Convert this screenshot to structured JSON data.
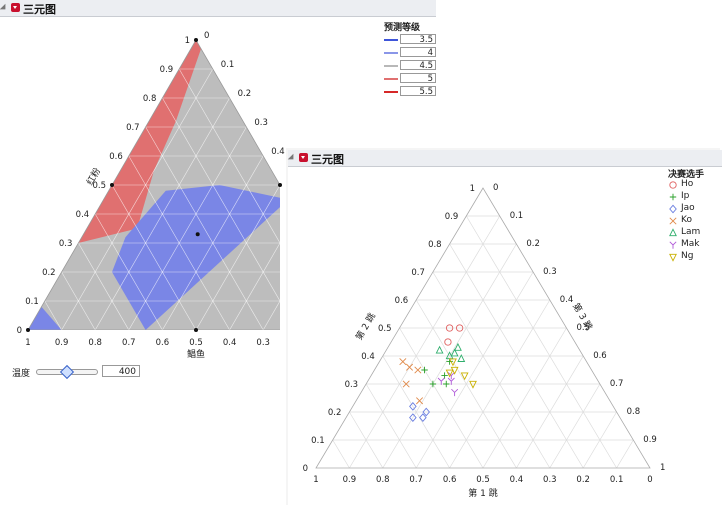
{
  "window1": {
    "title": "三元图",
    "legend_title": "预测等级",
    "legend": [
      {
        "value": "3.5",
        "color": "#3e55d9"
      },
      {
        "value": "4",
        "color": "#8a96e8"
      },
      {
        "value": "4.5",
        "color": "#b8b8b8"
      },
      {
        "value": "5",
        "color": "#e07070"
      },
      {
        "value": "5.5",
        "color": "#d62828"
      }
    ],
    "left_axis_label": "红粉",
    "bottom_axis_label": "鲳鱼",
    "slider": {
      "label": "温度",
      "value": "400",
      "fraction": 0.5
    }
  },
  "window2": {
    "title": "三元图",
    "legend_title": "决赛选手",
    "legend": [
      {
        "name": "Ho",
        "marker": "circle",
        "color": "#e06060"
      },
      {
        "name": "Ip",
        "marker": "plus",
        "color": "#2aa02a"
      },
      {
        "name": "Jao",
        "marker": "diamond",
        "color": "#6b7fe0"
      },
      {
        "name": "Ko",
        "marker": "x",
        "color": "#e08a4a"
      },
      {
        "name": "Lam",
        "marker": "triangle",
        "color": "#2fae6c"
      },
      {
        "name": "Mak",
        "marker": "y",
        "color": "#b05ad8"
      },
      {
        "name": "Ng",
        "marker": "tridown",
        "color": "#c9b000"
      }
    ],
    "left_axis_label": "第 2 跳",
    "right_axis_label": "第 3 跳",
    "bottom_axis_label": "第 1 跳"
  },
  "chart_data": [
    {
      "type": "ternary-contour",
      "title": "三元图",
      "axes": {
        "left": "红粉",
        "bottom": "鲳鱼"
      },
      "ticks": [
        "0",
        "0.1",
        "0.2",
        "0.3",
        "0.4",
        "0.5",
        "0.6",
        "0.7",
        "0.8",
        "0.9",
        "1"
      ],
      "legend_title": "预测等级",
      "levels": [
        3.5,
        4,
        4.5,
        5,
        5.5
      ],
      "regions": [
        {
          "level": "5",
          "color": "#e07070",
          "description_points_ABC": [
            [
              0.3,
              0.7,
              0
            ],
            [
              0.35,
              0.5,
              0.15
            ],
            [
              0.55,
              0.35,
              0.1
            ],
            [
              0.72,
              0.2,
              0.08
            ],
            [
              0.97,
              0,
              0.03
            ],
            [
              1,
              0,
              0
            ]
          ]
        },
        {
          "level": "4",
          "color": "#7a86e6",
          "description_points_ABC": [
            [
              0.45,
              0,
              0.55
            ],
            [
              0.5,
              0.18,
              0.32
            ],
            [
              0.48,
              0.35,
              0.17
            ],
            [
              0.32,
              0.55,
              0.13
            ],
            [
              0.2,
              0.65,
              0.15
            ],
            [
              0,
              0.65,
              0.35
            ]
          ]
        }
      ]
    },
    {
      "type": "ternary-scatter",
      "title": "三元图",
      "axes": {
        "left": "第 2 跳",
        "right": "第 3 跳",
        "bottom": "第 1 跳"
      },
      "ticks": [
        "0",
        "0.1",
        "0.2",
        "0.3",
        "0.4",
        "0.5",
        "0.6",
        "0.7",
        "0.8",
        "0.9",
        "1"
      ],
      "legend_title": "决赛选手",
      "series": [
        {
          "name": "Ho",
          "points": [
            [
              0.35,
              0.5,
              0.15
            ],
            [
              0.32,
              0.5,
              0.18
            ],
            [
              0.38,
              0.45,
              0.17
            ]
          ]
        },
        {
          "name": "Ip",
          "points": [
            [
              0.41,
              0.38,
              0.21
            ],
            [
              0.45,
              0.33,
              0.22
            ],
            [
              0.5,
              0.3,
              0.2
            ],
            [
              0.5,
              0.35,
              0.15
            ],
            [
              0.46,
              0.3,
              0.24
            ]
          ]
        },
        {
          "name": "Jao",
          "points": [
            [
              0.59,
              0.18,
              0.23
            ],
            [
              0.57,
              0.2,
              0.23
            ],
            [
              0.6,
              0.22,
              0.18
            ],
            [
              0.62,
              0.18,
              0.2
            ]
          ]
        },
        {
          "name": "Ko",
          "points": [
            [
              0.55,
              0.38,
              0.07
            ],
            [
              0.52,
              0.35,
              0.13
            ],
            [
              0.58,
              0.3,
              0.12
            ],
            [
              0.54,
              0.36,
              0.1
            ],
            [
              0.57,
              0.24,
              0.19
            ]
          ]
        },
        {
          "name": "Lam",
          "points": [
            [
              0.36,
              0.43,
              0.21
            ],
            [
              0.38,
              0.41,
              0.21
            ],
            [
              0.42,
              0.42,
              0.16
            ],
            [
              0.4,
              0.4,
              0.2
            ],
            [
              0.37,
              0.39,
              0.24
            ]
          ]
        },
        {
          "name": "Mak",
          "points": [
            [
              0.43,
              0.33,
              0.24
            ],
            [
              0.47,
              0.31,
              0.22
            ],
            [
              0.45,
              0.27,
              0.28
            ],
            [
              0.44,
              0.31,
              0.25
            ]
          ]
        },
        {
          "name": "Ng",
          "points": [
            [
              0.4,
              0.38,
              0.22
            ],
            [
              0.39,
              0.33,
              0.28
            ],
            [
              0.41,
              0.35,
              0.24
            ],
            [
              0.43,
              0.34,
              0.23
            ],
            [
              0.38,
              0.3,
              0.32
            ]
          ]
        }
      ]
    }
  ]
}
